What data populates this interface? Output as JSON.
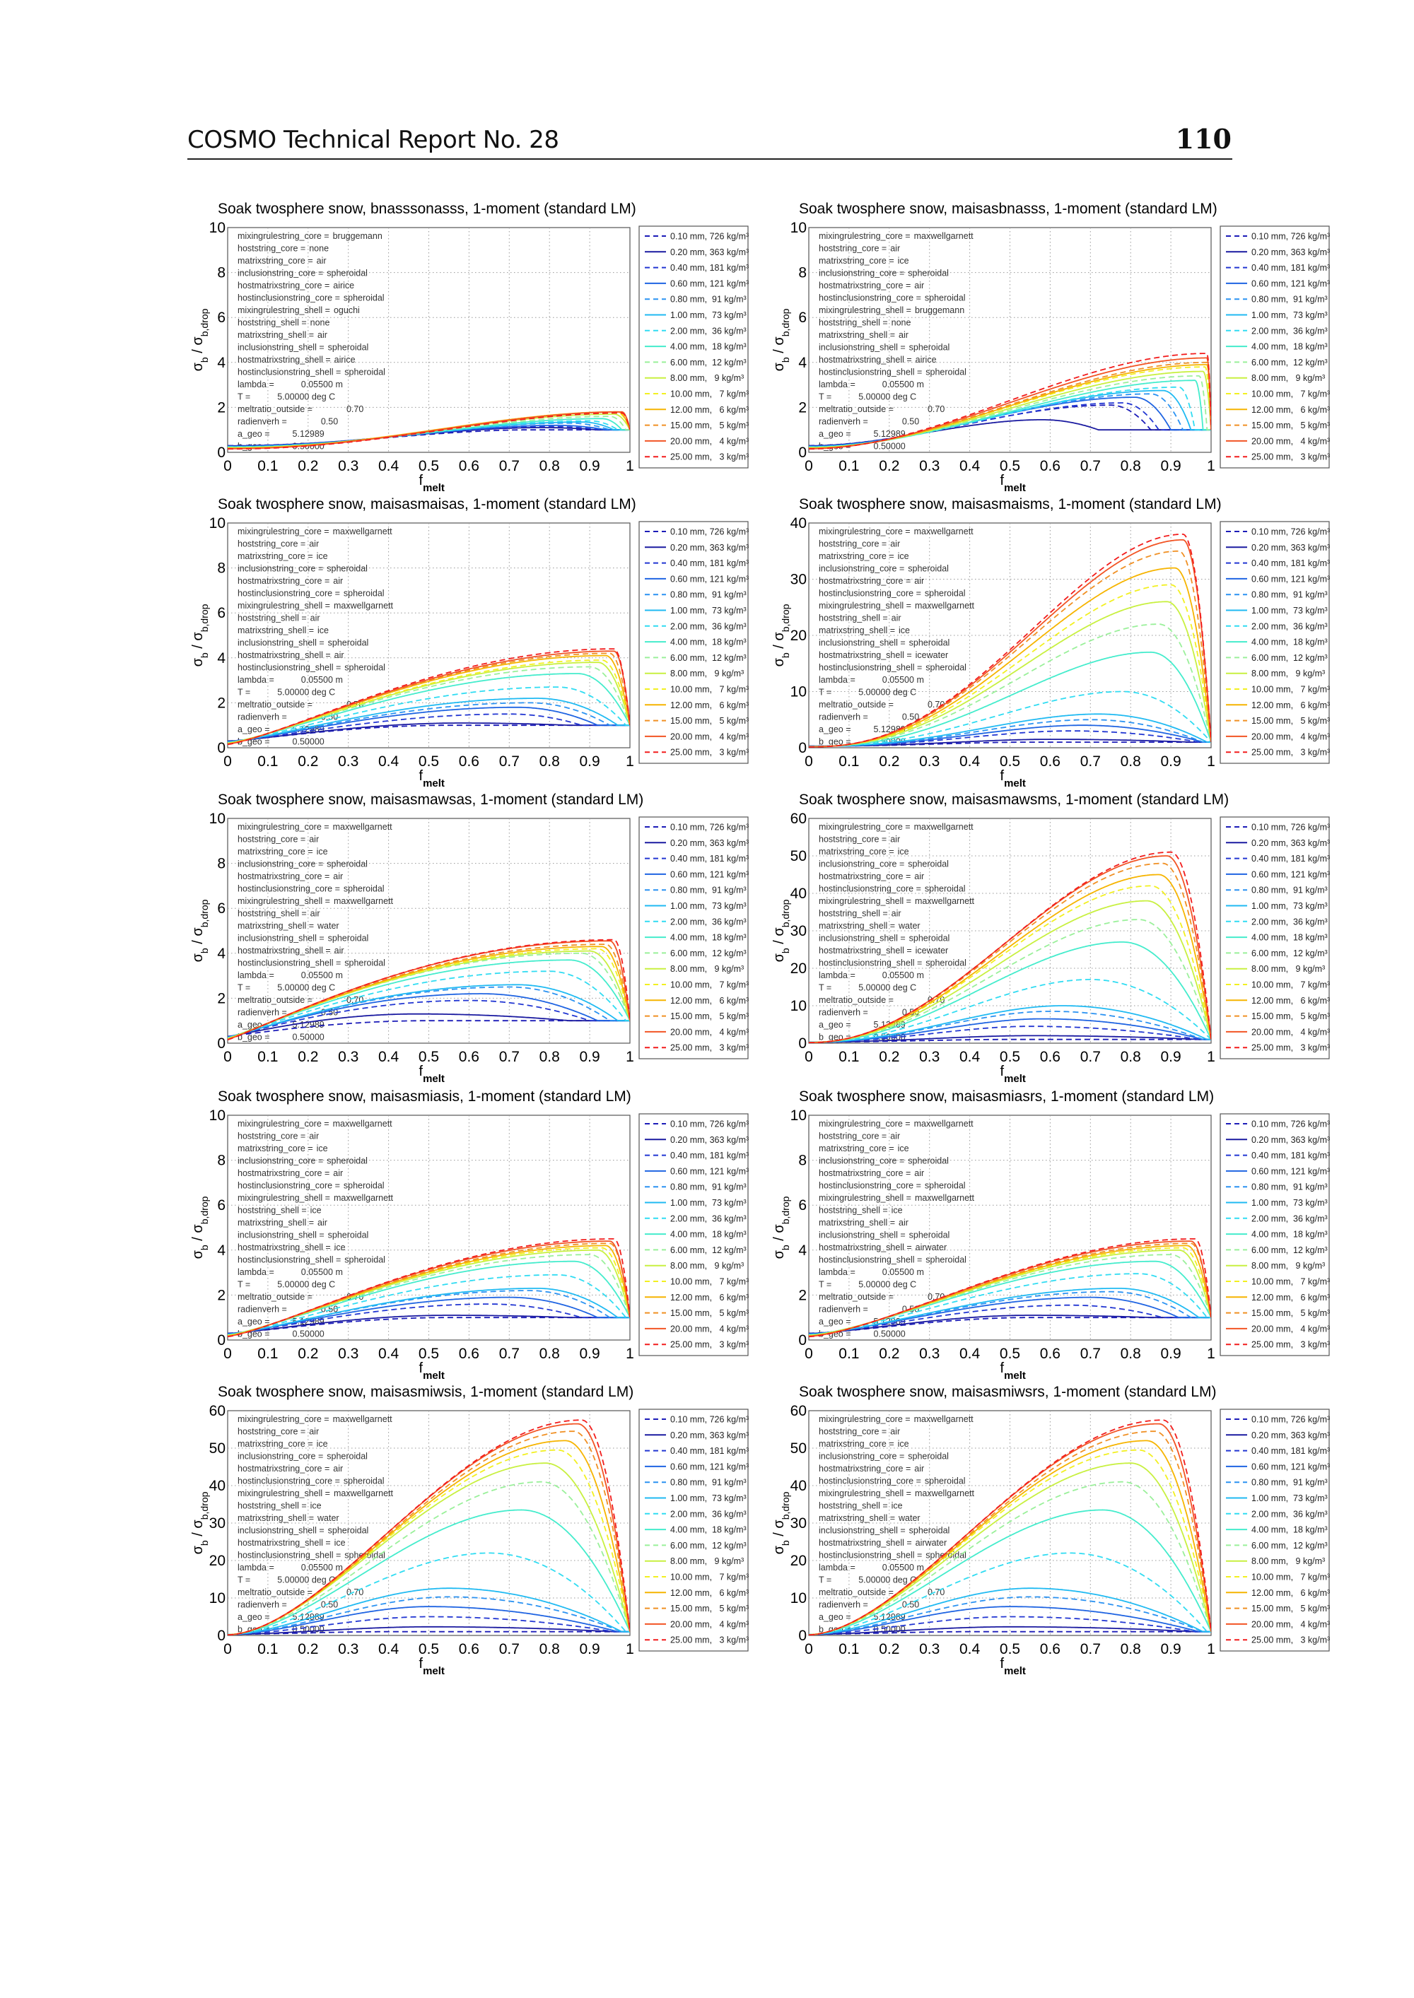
{
  "header": {
    "title": "COSMO Technical Report No. 28",
    "page_number": "110"
  },
  "annotation_keys": [
    "mixingrulestring_core =",
    "hoststring_core =",
    "matrixstring_core =",
    "inclusionstring_core =",
    "hostmatrixstring_core =",
    "hostinclusionstring_core =",
    "mixingrulestring_shell =",
    "hoststring_shell =",
    "matrixstring_shell =",
    "inclusionstring_shell =",
    "hostmatrixstring_shell =",
    "hostinclusionstring_shell ="
  ],
  "fixed_params": [
    {
      "key": "lambda =",
      "value": "0.05500 m"
    },
    {
      "key": "T =",
      "value": "5.00000 deg C"
    },
    {
      "key": "meltratio_outside =",
      "value": "0.70"
    },
    {
      "key": "radienverh =",
      "value": "0.50"
    },
    {
      "key": "a_geo =",
      "value": "5.12989"
    },
    {
      "key": "b_geo =",
      "value": "0.50000"
    }
  ],
  "axis_labels": {
    "y_main": "σ",
    "y_sub": "b",
    "y_sep": " / σ",
    "y_sub2": "b,drop",
    "x_main": "f",
    "x_sub": "melt"
  },
  "legend": {
    "labels": [
      "0.10 mm, 726 kg/m³",
      "0.20 mm, 363 kg/m³",
      "0.40 mm, 181 kg/m³",
      "0.60 mm, 121 kg/m³",
      "0.80 mm,  91 kg/m³",
      "1.00 mm,  73 kg/m³",
      "2.00 mm,  36 kg/m³",
      "4.00 mm,  18 kg/m³",
      "6.00 mm,  12 kg/m³",
      "8.00 mm,   9 kg/m³",
      "10.00 mm,   7 kg/m³",
      "12.00 mm,   6 kg/m³",
      "15.00 mm,   5 kg/m³",
      "20.00 mm,   4 kg/m³",
      "25.00 mm,   3 kg/m³"
    ],
    "colors": [
      "#1c1cb8",
      "#1a1aa0",
      "#2236d2",
      "#1f64e2",
      "#2a92f2",
      "#20baf2",
      "#30dcf2",
      "#44eccc",
      "#9af09a",
      "#c8f040",
      "#f2f020",
      "#f6b400",
      "#f09024",
      "#f25424",
      "#f21c1c"
    ],
    "dashed": [
      true,
      false,
      true,
      false,
      true,
      false,
      true,
      false,
      true,
      false,
      true,
      false,
      true,
      false,
      true
    ]
  },
  "chart_data": [
    {
      "type": "line",
      "title": "Soak twosphere snow, bnasssonasss, 1-moment (standard LM)",
      "xlabel": "f_melt",
      "ylabel": "σ_b / σ_b,drop",
      "xlim": [
        0,
        1
      ],
      "ylim": [
        0,
        10
      ],
      "xticks": [
        "0",
        "0.1",
        "0.2",
        "0.3",
        "0.4",
        "0.5",
        "0.6",
        "0.7",
        "0.8",
        "0.9",
        "1"
      ],
      "yticks": [
        "0",
        "2",
        "4",
        "6",
        "8",
        "10"
      ],
      "grid": true,
      "legend_position": "outside-right",
      "params": [
        "bruggemann",
        "none",
        "air",
        "spheroidal",
        "airice",
        "spheroidal",
        "oguchi",
        "none",
        "air",
        "spheroidal",
        "airice",
        "spheroidal"
      ],
      "y0": [
        0.3,
        0.15
      ],
      "rise_exponent": 2.2,
      "peak_x": [
        0.75,
        0.78,
        0.8,
        0.82,
        0.85,
        0.88,
        0.9,
        0.93,
        0.95,
        0.96,
        0.97,
        0.97,
        0.98,
        0.98,
        0.98
      ],
      "peak_y": [
        1.0,
        1.1,
        1.15,
        1.2,
        1.3,
        1.35,
        1.4,
        1.5,
        1.6,
        1.7,
        1.75,
        1.8,
        1.8,
        1.8,
        1.75
      ],
      "end_x": [
        0.9,
        0.92,
        0.93,
        0.94,
        0.95,
        0.96,
        0.97,
        0.98,
        0.99,
        1,
        1,
        1,
        1,
        1,
        1
      ]
    },
    {
      "type": "line",
      "title": "Soak twosphere snow, maisasbnasss, 1-moment (standard LM)",
      "xlabel": "f_melt",
      "ylabel": "σ_b / σ_b,drop",
      "xlim": [
        0,
        1
      ],
      "ylim": [
        0,
        10
      ],
      "xticks": [
        "0",
        "0.1",
        "0.2",
        "0.3",
        "0.4",
        "0.5",
        "0.6",
        "0.7",
        "0.8",
        "0.9",
        "1"
      ],
      "yticks": [
        "0",
        "2",
        "4",
        "6",
        "8",
        "10"
      ],
      "grid": true,
      "legend_position": "outside-right",
      "params": [
        "maxwellgarnett",
        "air",
        "ice",
        "spheroidal",
        "air",
        "spheroidal",
        "bruggemann",
        "none",
        "air",
        "spheroidal",
        "airice",
        "spheroidal"
      ],
      "y0": [
        0.3,
        0.15
      ],
      "rise_exponent": 2.0,
      "peak_x": [
        0.75,
        0.58,
        0.78,
        0.81,
        0.85,
        0.88,
        0.92,
        0.96,
        0.97,
        0.98,
        0.985,
        0.99,
        0.99,
        0.99,
        0.99
      ],
      "peak_y": [
        2.1,
        1.45,
        2.2,
        2.45,
        2.6,
        2.75,
        2.9,
        3.2,
        3.4,
        3.6,
        3.8,
        3.9,
        4.0,
        4.2,
        4.4
      ],
      "end_x": [
        0.85,
        0.72,
        0.87,
        0.9,
        0.93,
        0.95,
        0.96,
        0.98,
        0.99,
        1,
        1,
        1,
        1,
        1,
        1
      ]
    },
    {
      "type": "line",
      "title": "Soak twosphere snow, maisasmaisas, 1-moment (standard LM)",
      "xlabel": "f_melt",
      "ylabel": "σ_b / σ_b,drop",
      "xlim": [
        0,
        1
      ],
      "ylim": [
        0,
        10
      ],
      "xticks": [
        "0",
        "0.1",
        "0.2",
        "0.3",
        "0.4",
        "0.5",
        "0.6",
        "0.7",
        "0.8",
        "0.9",
        "1"
      ],
      "yticks": [
        "0",
        "2",
        "4",
        "6",
        "8",
        "10"
      ],
      "grid": true,
      "legend_position": "outside-right",
      "params": [
        "maxwellgarnett",
        "air",
        "ice",
        "spheroidal",
        "air",
        "spheroidal",
        "maxwellgarnett",
        "air",
        "ice",
        "spheroidal",
        "air",
        "spheroidal"
      ],
      "y0": [
        0.3,
        0.15
      ],
      "rise_exponent": 1.3,
      "peak_x": [
        0.55,
        0.58,
        0.7,
        0.72,
        0.75,
        0.77,
        0.82,
        0.87,
        0.9,
        0.92,
        0.93,
        0.94,
        0.95,
        0.96,
        0.96
      ],
      "peak_y": [
        1.0,
        1.1,
        1.5,
        1.8,
        2.0,
        2.2,
        2.7,
        3.3,
        3.6,
        3.8,
        3.9,
        4.1,
        4.2,
        4.3,
        4.4
      ],
      "end_x": [
        0.85,
        0.85,
        0.88,
        0.92,
        0.95,
        0.97,
        0.99,
        1,
        1,
        1,
        1,
        1,
        1,
        1,
        1
      ]
    },
    {
      "type": "line",
      "title": "Soak twosphere snow, maisasmaisms, 1-moment (standard LM)",
      "xlabel": "f_melt",
      "ylabel": "σ_b / σ_b,drop",
      "xlim": [
        0,
        1
      ],
      "ylim": [
        0,
        40
      ],
      "xticks": [
        "0",
        "0.1",
        "0.2",
        "0.3",
        "0.4",
        "0.5",
        "0.6",
        "0.7",
        "0.8",
        "0.9",
        "1"
      ],
      "yticks": [
        "0",
        "10",
        "20",
        "30",
        "40"
      ],
      "grid": true,
      "legend_position": "outside-right",
      "params": [
        "maxwellgarnett",
        "air",
        "ice",
        "spheroidal",
        "air",
        "spheroidal",
        "maxwellgarnett",
        "air",
        "ice",
        "spheroidal",
        "icewater",
        "spheroidal"
      ],
      "y0": [
        0.3,
        0.15
      ],
      "rise_exponent": 2.5,
      "peak_x": [
        0.55,
        0.6,
        0.65,
        0.68,
        0.7,
        0.72,
        0.78,
        0.85,
        0.87,
        0.89,
        0.9,
        0.91,
        0.92,
        0.93,
        0.93
      ],
      "peak_y": [
        1.0,
        1.5,
        3,
        4,
        5,
        6,
        10,
        17,
        22,
        26,
        29,
        32,
        35,
        37,
        38
      ],
      "end_x": [
        0.95,
        0.95,
        0.97,
        0.98,
        0.98,
        0.99,
        1,
        1,
        1,
        1,
        1,
        1,
        1,
        1,
        1
      ]
    },
    {
      "type": "line",
      "title": "Soak twosphere snow, maisasmawsas, 1-moment (standard LM)",
      "xlabel": "f_melt",
      "ylabel": "σ_b / σ_b,drop",
      "xlim": [
        0,
        1
      ],
      "ylim": [
        0,
        10
      ],
      "xticks": [
        "0",
        "0.1",
        "0.2",
        "0.3",
        "0.4",
        "0.5",
        "0.6",
        "0.7",
        "0.8",
        "0.9",
        "1"
      ],
      "yticks": [
        "0",
        "2",
        "4",
        "6",
        "8",
        "10"
      ],
      "grid": true,
      "legend_position": "outside-right",
      "params": [
        "maxwellgarnett",
        "air",
        "ice",
        "spheroidal",
        "air",
        "spheroidal",
        "maxwellgarnett",
        "air",
        "water",
        "spheroidal",
        "air",
        "spheroidal"
      ],
      "y0": [
        0.3,
        0.15
      ],
      "rise_exponent": 1.1,
      "peak_x": [
        0.5,
        0.47,
        0.6,
        0.63,
        0.7,
        0.72,
        0.8,
        0.85,
        0.88,
        0.9,
        0.92,
        0.93,
        0.94,
        0.95,
        0.96
      ],
      "peak_y": [
        1.0,
        1.3,
        1.9,
        2.2,
        2.5,
        2.6,
        3.2,
        3.7,
        4.0,
        4.1,
        4.2,
        4.3,
        4.4,
        4.55,
        4.6
      ],
      "end_x": [
        0.85,
        0.85,
        0.9,
        0.92,
        0.95,
        0.97,
        0.99,
        1,
        1,
        1,
        1,
        1,
        1,
        1,
        1
      ]
    },
    {
      "type": "line",
      "title": "Soak twosphere snow, maisasmawsms, 1-moment (standard LM)",
      "xlabel": "f_melt",
      "ylabel": "σ_b / σ_b,drop",
      "xlim": [
        0,
        1
      ],
      "ylim": [
        0,
        60
      ],
      "xticks": [
        "0",
        "0.1",
        "0.2",
        "0.3",
        "0.4",
        "0.5",
        "0.6",
        "0.7",
        "0.8",
        "0.9",
        "1"
      ],
      "yticks": [
        "0",
        "10",
        "20",
        "30",
        "40",
        "50",
        "60"
      ],
      "grid": true,
      "legend_position": "outside-right",
      "params": [
        "maxwellgarnett",
        "air",
        "ice",
        "spheroidal",
        "air",
        "spheroidal",
        "maxwellgarnett",
        "air",
        "water",
        "spheroidal",
        "icewater",
        "spheroidal"
      ],
      "y0": [
        0.3,
        0.15
      ],
      "rise_exponent": 2.2,
      "peak_x": [
        0.5,
        0.55,
        0.55,
        0.58,
        0.6,
        0.63,
        0.7,
        0.78,
        0.82,
        0.84,
        0.85,
        0.87,
        0.88,
        0.89,
        0.9
      ],
      "peak_y": [
        1.0,
        2,
        4.5,
        6.5,
        8.5,
        10,
        17,
        27,
        33,
        38,
        42,
        45,
        48,
        50,
        51
      ],
      "end_x": [
        0.95,
        0.97,
        0.97,
        0.98,
        0.98,
        0.99,
        1,
        1,
        1,
        1,
        1,
        1,
        1,
        1,
        1
      ]
    },
    {
      "type": "line",
      "title": "Soak twosphere snow, maisasmiasis, 1-moment (standard LM)",
      "xlabel": "f_melt",
      "ylabel": "σ_b / σ_b,drop",
      "xlim": [
        0,
        1
      ],
      "ylim": [
        0,
        10
      ],
      "xticks": [
        "0",
        "0.1",
        "0.2",
        "0.3",
        "0.4",
        "0.5",
        "0.6",
        "0.7",
        "0.8",
        "0.9",
        "1"
      ],
      "yticks": [
        "0",
        "2",
        "4",
        "6",
        "8",
        "10"
      ],
      "grid": true,
      "legend_position": "outside-right",
      "params": [
        "maxwellgarnett",
        "air",
        "ice",
        "spheroidal",
        "air",
        "spheroidal",
        "maxwellgarnett",
        "ice",
        "air",
        "spheroidal",
        "ice",
        "spheroidal"
      ],
      "y0": [
        0.3,
        0.15
      ],
      "rise_exponent": 1.3,
      "peak_x": [
        0.55,
        0.55,
        0.65,
        0.7,
        0.75,
        0.77,
        0.82,
        0.86,
        0.9,
        0.92,
        0.93,
        0.94,
        0.95,
        0.95,
        0.96
      ],
      "peak_y": [
        1.0,
        1.1,
        1.6,
        1.9,
        2.2,
        2.3,
        2.9,
        3.5,
        3.8,
        4.0,
        4.1,
        4.2,
        4.3,
        4.4,
        4.5
      ],
      "end_x": [
        0.85,
        0.85,
        0.88,
        0.92,
        0.95,
        0.97,
        0.99,
        1,
        1,
        1,
        1,
        1,
        1,
        1,
        1
      ]
    },
    {
      "type": "line",
      "title": "Soak twosphere snow, maisasmiasrs, 1-moment (standard LM)",
      "xlabel": "f_melt",
      "ylabel": "σ_b / σ_b,drop",
      "xlim": [
        0,
        1
      ],
      "ylim": [
        0,
        10
      ],
      "xticks": [
        "0",
        "0.1",
        "0.2",
        "0.3",
        "0.4",
        "0.5",
        "0.6",
        "0.7",
        "0.8",
        "0.9",
        "1"
      ],
      "yticks": [
        "0",
        "2",
        "4",
        "6",
        "8",
        "10"
      ],
      "grid": true,
      "legend_position": "outside-right",
      "params": [
        "maxwellgarnett",
        "air",
        "ice",
        "spheroidal",
        "air",
        "spheroidal",
        "maxwellgarnett",
        "ice",
        "air",
        "spheroidal",
        "airwater",
        "spheroidal"
      ],
      "y0": [
        0.3,
        0.15
      ],
      "rise_exponent": 1.5,
      "peak_x": [
        0.55,
        0.55,
        0.65,
        0.7,
        0.75,
        0.77,
        0.82,
        0.86,
        0.9,
        0.92,
        0.93,
        0.94,
        0.95,
        0.95,
        0.96
      ],
      "peak_y": [
        1.0,
        1.1,
        1.55,
        1.9,
        2.15,
        2.3,
        2.95,
        3.5,
        3.8,
        4.0,
        4.1,
        4.2,
        4.3,
        4.4,
        4.5
      ],
      "end_x": [
        0.85,
        0.85,
        0.88,
        0.92,
        0.95,
        0.97,
        0.99,
        1,
        1,
        1,
        1,
        1,
        1,
        1,
        1
      ]
    },
    {
      "type": "line",
      "title": "Soak twosphere snow, maisasmiwsis, 1-moment (standard LM)",
      "xlabel": "f_melt",
      "ylabel": "σ_b / σ_b,drop",
      "xlim": [
        0,
        1
      ],
      "ylim": [
        0,
        60
      ],
      "xticks": [
        "0",
        "0.1",
        "0.2",
        "0.3",
        "0.4",
        "0.5",
        "0.6",
        "0.7",
        "0.8",
        "0.9",
        "1"
      ],
      "yticks": [
        "0",
        "10",
        "20",
        "30",
        "40",
        "50",
        "60"
      ],
      "grid": true,
      "legend_position": "outside-right",
      "params": [
        "maxwellgarnett",
        "air",
        "ice",
        "spheroidal",
        "air",
        "spheroidal",
        "maxwellgarnett",
        "ice",
        "water",
        "spheroidal",
        "ice",
        "spheroidal"
      ],
      "y0": [
        0.3,
        0.15
      ],
      "rise_exponent": 1.8,
      "peak_x": [
        0.4,
        0.5,
        0.5,
        0.5,
        0.55,
        0.55,
        0.65,
        0.73,
        0.78,
        0.79,
        0.82,
        0.84,
        0.86,
        0.87,
        0.88
      ],
      "peak_y": [
        1.0,
        2.3,
        5,
        7.7,
        10.3,
        12.6,
        22,
        33.5,
        41,
        46,
        49.5,
        52,
        54.5,
        56.5,
        57.5
      ],
      "end_x": [
        0.95,
        0.96,
        0.96,
        0.97,
        0.98,
        0.98,
        0.99,
        1,
        1,
        1,
        1,
        1,
        1,
        1,
        1
      ]
    },
    {
      "type": "line",
      "title": "Soak twosphere snow, maisasmiwsrs, 1-moment (standard LM)",
      "xlabel": "f_melt",
      "ylabel": "σ_b / σ_b,drop",
      "xlim": [
        0,
        1
      ],
      "ylim": [
        0,
        60
      ],
      "xticks": [
        "0",
        "0.1",
        "0.2",
        "0.3",
        "0.4",
        "0.5",
        "0.6",
        "0.7",
        "0.8",
        "0.9",
        "1"
      ],
      "yticks": [
        "0",
        "10",
        "20",
        "30",
        "40",
        "50",
        "60"
      ],
      "grid": true,
      "legend_position": "outside-right",
      "params": [
        "maxwellgarnett",
        "air",
        "ice",
        "spheroidal",
        "air",
        "spheroidal",
        "maxwellgarnett",
        "ice",
        "water",
        "spheroidal",
        "airwater",
        "spheroidal"
      ],
      "y0": [
        0.3,
        0.15
      ],
      "rise_exponent": 1.8,
      "peak_x": [
        0.4,
        0.5,
        0.5,
        0.5,
        0.55,
        0.55,
        0.65,
        0.73,
        0.78,
        0.8,
        0.82,
        0.84,
        0.86,
        0.87,
        0.88
      ],
      "peak_y": [
        1.0,
        2.3,
        5,
        7.7,
        10.3,
        12.6,
        22,
        33.5,
        41,
        46,
        49.5,
        52,
        54.5,
        56.5,
        57.5
      ],
      "end_x": [
        0.95,
        0.96,
        0.96,
        0.97,
        0.98,
        0.98,
        0.99,
        1,
        1,
        1,
        1,
        1,
        1,
        1,
        1
      ]
    }
  ]
}
